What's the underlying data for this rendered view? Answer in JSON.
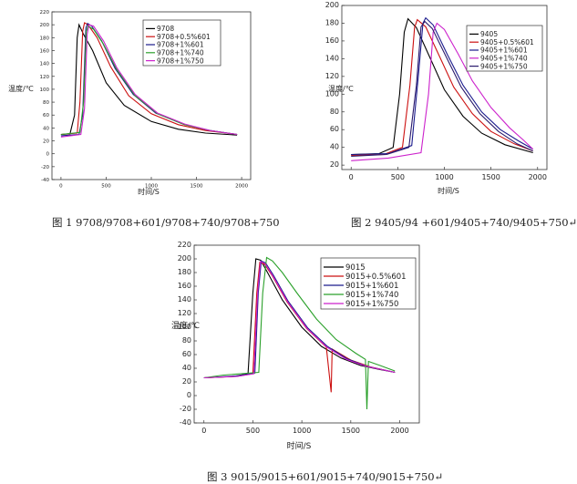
{
  "captions": [
    "图 1 9708/9708+601/9708+740/9708+750",
    "图 2 9405/94 +601/9405+740/9405+750↵",
    "图 3 9015/9015+601/9015+740/9015+750↵"
  ],
  "chart_data": [
    {
      "type": "line",
      "xlabel": "时间/S",
      "ylabel": "温度/℃",
      "xlim": [
        -100,
        2100
      ],
      "ylim": [
        -40,
        220
      ],
      "xticks": [
        0,
        500,
        1000,
        1500,
        2000
      ],
      "yticks": [
        -40,
        -20,
        0,
        20,
        40,
        60,
        80,
        100,
        120,
        140,
        160,
        180,
        200,
        220
      ],
      "legend_position": "top-right",
      "series": [
        {
          "name": "9708",
          "color": "#000000",
          "values": [
            [
              0,
              30
            ],
            [
              100,
              31
            ],
            [
              150,
              60
            ],
            [
              180,
              180
            ],
            [
              200,
              200
            ],
            [
              250,
              185
            ],
            [
              350,
              160
            ],
            [
              500,
              110
            ],
            [
              700,
              75
            ],
            [
              1000,
              50
            ],
            [
              1300,
              38
            ],
            [
              1600,
              32
            ],
            [
              1950,
              29
            ]
          ]
        },
        {
          "name": "9708+0.5%601",
          "color": "#cc1010",
          "values": [
            [
              0,
              30
            ],
            [
              180,
              32
            ],
            [
              210,
              80
            ],
            [
              240,
              190
            ],
            [
              260,
              203
            ],
            [
              300,
              200
            ],
            [
              400,
              180
            ],
            [
              550,
              135
            ],
            [
              750,
              90
            ],
            [
              1000,
              62
            ],
            [
              1300,
              45
            ],
            [
              1600,
              36
            ],
            [
              1950,
              30
            ]
          ]
        },
        {
          "name": "9708+1%601",
          "color": "#1a1a8c",
          "values": [
            [
              0,
              28
            ],
            [
              200,
              30
            ],
            [
              240,
              60
            ],
            [
              275,
              195
            ],
            [
              295,
              202
            ],
            [
              340,
              198
            ],
            [
              450,
              175
            ],
            [
              600,
              132
            ],
            [
              800,
              92
            ],
            [
              1050,
              63
            ],
            [
              1350,
              46
            ],
            [
              1650,
              36
            ],
            [
              1950,
              30
            ]
          ]
        },
        {
          "name": "9708+1%740",
          "color": "#2aa02a",
          "values": [
            [
              0,
              30
            ],
            [
              210,
              33
            ],
            [
              250,
              80
            ],
            [
              280,
              190
            ],
            [
              300,
              198
            ],
            [
              360,
              193
            ],
            [
              470,
              170
            ],
            [
              620,
              130
            ],
            [
              820,
              90
            ],
            [
              1070,
              62
            ],
            [
              1370,
              45
            ],
            [
              1650,
              36
            ],
            [
              1950,
              30
            ]
          ]
        },
        {
          "name": "9708+1%750",
          "color": "#cc22cc",
          "values": [
            [
              0,
              26
            ],
            [
              220,
              30
            ],
            [
              260,
              70
            ],
            [
              290,
              185
            ],
            [
              310,
              200
            ],
            [
              360,
              198
            ],
            [
              470,
              175
            ],
            [
              620,
              133
            ],
            [
              820,
              92
            ],
            [
              1070,
              63
            ],
            [
              1370,
              46
            ],
            [
              1650,
              36
            ],
            [
              1950,
              30
            ]
          ]
        }
      ]
    },
    {
      "type": "line",
      "xlabel": "时间/S",
      "ylabel": "温度/℃",
      "xlim": [
        -100,
        2100
      ],
      "ylim": [
        15,
        200
      ],
      "xticks": [
        0,
        500,
        1000,
        1500,
        2000
      ],
      "yticks": [
        20,
        40,
        60,
        80,
        100,
        120,
        140,
        160,
        180,
        200
      ],
      "legend_position": "top-right",
      "series": [
        {
          "name": "9405",
          "color": "#000000",
          "values": [
            [
              0,
              32
            ],
            [
              300,
              33
            ],
            [
              450,
              40
            ],
            [
              520,
              100
            ],
            [
              570,
              170
            ],
            [
              610,
              185
            ],
            [
              700,
              175
            ],
            [
              850,
              140
            ],
            [
              1000,
              105
            ],
            [
              1200,
              75
            ],
            [
              1400,
              56
            ],
            [
              1650,
              43
            ],
            [
              1950,
              34
            ]
          ]
        },
        {
          "name": "9405+0.5%601",
          "color": "#cc1010",
          "values": [
            [
              0,
              31
            ],
            [
              350,
              32
            ],
            [
              550,
              40
            ],
            [
              630,
              110
            ],
            [
              680,
              175
            ],
            [
              710,
              184
            ],
            [
              800,
              176
            ],
            [
              950,
              142
            ],
            [
              1100,
              108
            ],
            [
              1300,
              78
            ],
            [
              1500,
              58
            ],
            [
              1750,
              44
            ],
            [
              1950,
              36
            ]
          ]
        },
        {
          "name": "9405+1%601",
          "color": "#1a1a8c",
          "values": [
            [
              0,
              32
            ],
            [
              400,
              33
            ],
            [
              650,
              42
            ],
            [
              720,
              120
            ],
            [
              770,
              180
            ],
            [
              800,
              186
            ],
            [
              880,
              178
            ],
            [
              1030,
              145
            ],
            [
              1200,
              110
            ],
            [
              1400,
              80
            ],
            [
              1600,
              60
            ],
            [
              1800,
              47
            ],
            [
              1950,
              38
            ]
          ]
        },
        {
          "name": "9405+1%740",
          "color": "#cc22cc",
          "values": [
            [
              0,
              25
            ],
            [
              400,
              28
            ],
            [
              750,
              34
            ],
            [
              830,
              100
            ],
            [
              880,
              170
            ],
            [
              920,
              180
            ],
            [
              1000,
              173
            ],
            [
              1150,
              145
            ],
            [
              1300,
              115
            ],
            [
              1500,
              85
            ],
            [
              1700,
              62
            ],
            [
              1850,
              48
            ],
            [
              1950,
              38
            ]
          ]
        },
        {
          "name": "9405+1%750",
          "color": "#2a1a6c",
          "values": [
            [
              0,
              30
            ],
            [
              380,
              32
            ],
            [
              620,
              40
            ],
            [
              700,
              110
            ],
            [
              750,
              176
            ],
            [
              790,
              182
            ],
            [
              870,
              174
            ],
            [
              1020,
              142
            ],
            [
              1180,
              108
            ],
            [
              1380,
              78
            ],
            [
              1580,
              58
            ],
            [
              1780,
              44
            ],
            [
              1950,
              36
            ]
          ]
        }
      ]
    },
    {
      "type": "line",
      "xlabel": "时间/S",
      "ylabel": "温度/℃",
      "xlim": [
        -100,
        2200
      ],
      "ylim": [
        -40,
        220
      ],
      "xticks": [
        0,
        500,
        1000,
        1500,
        2000
      ],
      "yticks": [
        -40,
        -20,
        0,
        20,
        40,
        60,
        80,
        100,
        120,
        140,
        160,
        180,
        200,
        220
      ],
      "legend_position": "top-right",
      "series": [
        {
          "name": "9015",
          "color": "#000000",
          "values": [
            [
              0,
              26
            ],
            [
              300,
              28
            ],
            [
              450,
              32
            ],
            [
              500,
              150
            ],
            [
              530,
              200
            ],
            [
              580,
              198
            ],
            [
              650,
              180
            ],
            [
              800,
              140
            ],
            [
              1000,
              100
            ],
            [
              1200,
              72
            ],
            [
              1400,
              55
            ],
            [
              1600,
              44
            ],
            [
              1800,
              38
            ],
            [
              1950,
              34
            ]
          ]
        },
        {
          "name": "9015+0.5%601",
          "color": "#cc1010",
          "values": [
            [
              0,
              26
            ],
            [
              330,
              28
            ],
            [
              500,
              32
            ],
            [
              540,
              150
            ],
            [
              570,
              195
            ],
            [
              620,
              192
            ],
            [
              700,
              175
            ],
            [
              850,
              137
            ],
            [
              1050,
              98
            ],
            [
              1250,
              71
            ],
            [
              1300,
              5
            ],
            [
              1310,
              68
            ],
            [
              1500,
              52
            ],
            [
              1700,
              42
            ],
            [
              1950,
              34
            ]
          ]
        },
        {
          "name": "9015+1%601",
          "color": "#1a1a8c",
          "values": [
            [
              0,
              26
            ],
            [
              350,
              29
            ],
            [
              520,
              33
            ],
            [
              555,
              150
            ],
            [
              585,
              197
            ],
            [
              630,
              194
            ],
            [
              710,
              176
            ],
            [
              860,
              138
            ],
            [
              1060,
              99
            ],
            [
              1260,
              72
            ],
            [
              1460,
              54
            ],
            [
              1660,
              43
            ],
            [
              1950,
              34
            ]
          ]
        },
        {
          "name": "9015+1%740",
          "color": "#2aa02a",
          "values": [
            [
              0,
              26
            ],
            [
              200,
              30
            ],
            [
              560,
              34
            ],
            [
              600,
              150
            ],
            [
              640,
              202
            ],
            [
              700,
              197
            ],
            [
              800,
              180
            ],
            [
              950,
              150
            ],
            [
              1150,
              112
            ],
            [
              1350,
              82
            ],
            [
              1550,
              62
            ],
            [
              1650,
              53
            ],
            [
              1665,
              -20
            ],
            [
              1680,
              50
            ],
            [
              1800,
              44
            ],
            [
              1950,
              36
            ]
          ]
        },
        {
          "name": "9015+1%750",
          "color": "#cc22cc",
          "values": [
            [
              0,
              26
            ],
            [
              340,
              28
            ],
            [
              510,
              32
            ],
            [
              548,
              150
            ],
            [
              578,
              196
            ],
            [
              625,
              193
            ],
            [
              705,
              175
            ],
            [
              855,
              137
            ],
            [
              1055,
              98
            ],
            [
              1255,
              71
            ],
            [
              1455,
              53
            ],
            [
              1655,
              43
            ],
            [
              1950,
              34
            ]
          ]
        }
      ]
    }
  ]
}
